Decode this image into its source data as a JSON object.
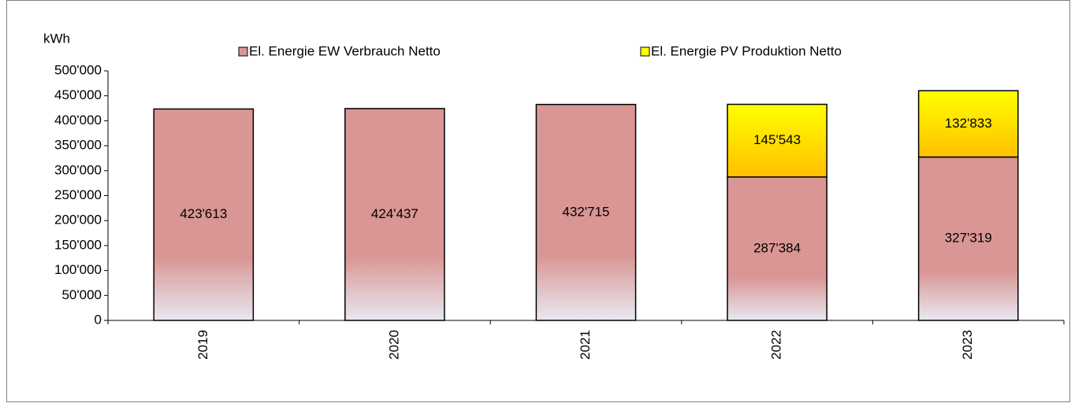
{
  "chart_data": {
    "type": "bar",
    "stacked": true,
    "ylabel": "kWh",
    "categories": [
      "2019",
      "2020",
      "2021",
      "2022",
      "2023"
    ],
    "series": [
      {
        "name": "El. Energie EW Verbrauch Netto",
        "color": "#d99694",
        "values": [
          423613,
          424437,
          432715,
          287384,
          327319
        ],
        "value_labels": [
          "423'613",
          "424'437",
          "432'715",
          "287'384",
          "327'319"
        ]
      },
      {
        "name": "El. Energie PV Produktion Netto",
        "color": "#ffff00",
        "values": [
          null,
          null,
          null,
          145543,
          132833
        ],
        "value_labels": [
          null,
          null,
          null,
          "145'543",
          "132'833"
        ]
      }
    ],
    "ylim": [
      0,
      500000
    ],
    "yticks": [
      0,
      {
        "value": 50000,
        "label": "50'000"
      },
      {
        "value": 100000,
        "label": "100'000"
      },
      {
        "value": 150000,
        "label": "150'000"
      },
      {
        "value": 200000,
        "label": "200'000"
      },
      {
        "value": 250000,
        "label": "250'000"
      },
      {
        "value": 300000,
        "label": "300'000"
      },
      {
        "value": 350000,
        "label": "350'000"
      },
      {
        "value": 400000,
        "label": "400'000"
      },
      {
        "value": 450000,
        "label": "450'000"
      },
      {
        "value": 500000,
        "label": "500'000"
      }
    ],
    "legend": "top"
  }
}
